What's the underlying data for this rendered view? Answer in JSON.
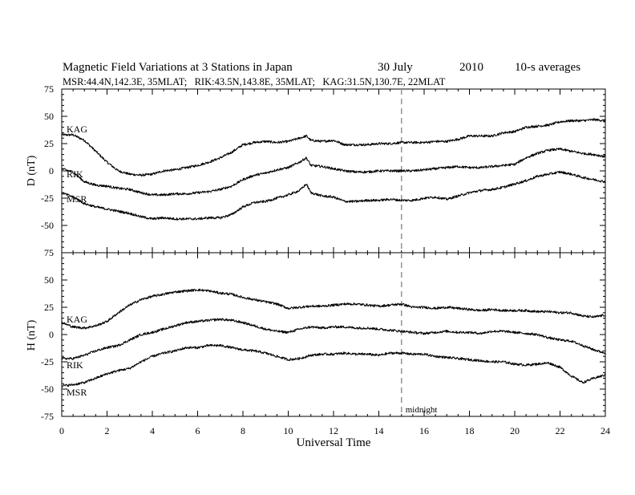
{
  "chart_data": {
    "type": "line",
    "title": {
      "main": "Magnetic Field Variations at 3 Stations in Japan",
      "date": "30 July",
      "year": "2010",
      "averaging": "10-s averages"
    },
    "subtitle": "MSR:44.4N,142.3E, 35MLAT;   RIK:43.5N,143.8E, 35MLAT;   KAG:31.5N,130.7E, 22MLAT",
    "xlabel": "Universal Time",
    "xlim": [
      0,
      24
    ],
    "xticks": [
      0,
      2,
      4,
      6,
      8,
      10,
      12,
      14,
      16,
      18,
      20,
      22,
      24
    ],
    "grid": false,
    "legend": "none",
    "line_color": "#000000",
    "marker": {
      "x": 15,
      "label": "midnight",
      "color": "#999999",
      "style": "dashed"
    },
    "panels": [
      {
        "ylabel": "D (nT)",
        "ylim": [
          -75,
          75
        ],
        "yticks": [
          -75,
          -50,
          -25,
          0,
          25,
          50,
          75
        ],
        "series": [
          {
            "name": "KAG",
            "x": [
              0,
              0.5,
              1,
              1.5,
              2,
              2.5,
              3,
              3.5,
              4,
              4.5,
              5,
              5.5,
              6,
              6.5,
              7,
              7.5,
              8,
              8.5,
              9,
              9.5,
              10,
              10.5,
              10.8,
              11,
              11.5,
              12,
              12.5,
              13,
              13.5,
              14,
              14.5,
              15,
              15.5,
              16,
              16.5,
              17,
              17.5,
              18,
              18.5,
              19,
              19.5,
              20,
              20.5,
              21,
              21.5,
              22,
              22.5,
              23,
              23.5,
              24
            ],
            "y": [
              33,
              33,
              28,
              18,
              8,
              0,
              -3,
              -4,
              -3,
              0,
              1,
              3,
              5,
              8,
              12,
              17,
              24,
              26,
              27,
              26,
              27,
              30,
              32,
              28,
              27,
              28,
              24,
              24,
              24,
              25,
              25,
              26,
              26,
              26,
              27,
              27,
              29,
              32,
              32,
              32,
              35,
              36,
              40,
              41,
              42,
              45,
              46,
              46,
              47,
              46
            ]
          },
          {
            "name": "RIK",
            "x": [
              0,
              0.5,
              1,
              1.5,
              2,
              2.5,
              3,
              3.5,
              4,
              4.5,
              5,
              5.5,
              6,
              6.5,
              7,
              7.5,
              8,
              8.5,
              9,
              9.5,
              10,
              10.5,
              10.8,
              11,
              11.5,
              12,
              12.5,
              13,
              13.5,
              14,
              14.5,
              15,
              15.5,
              16,
              16.5,
              17,
              17.5,
              18,
              18.5,
              19,
              19.5,
              20,
              20.5,
              21,
              21.5,
              22,
              22.5,
              23,
              23.5,
              24
            ],
            "y": [
              2,
              -1,
              -10,
              -13,
              -14,
              -16,
              -17,
              -20,
              -22,
              -22,
              -21,
              -21,
              -20,
              -19,
              -17,
              -14,
              -8,
              -4,
              -2,
              1,
              3,
              8,
              12,
              5,
              4,
              2,
              0,
              -1,
              -1,
              0,
              0,
              0,
              0,
              1,
              2,
              3,
              4,
              3,
              3,
              4,
              5,
              6,
              12,
              16,
              19,
              20,
              18,
              16,
              15,
              13
            ]
          },
          {
            "name": "MSR",
            "x": [
              0,
              0.5,
              1,
              1.5,
              2,
              2.5,
              3,
              3.5,
              4,
              4.5,
              5,
              5.5,
              6,
              6.5,
              7,
              7.5,
              8,
              8.5,
              9,
              9.5,
              10,
              10.5,
              10.8,
              11,
              11.5,
              12,
              12.5,
              13,
              13.5,
              14,
              14.5,
              15,
              15.5,
              16,
              16.5,
              17,
              17.5,
              18,
              18.5,
              19,
              19.5,
              20,
              20.5,
              21,
              21.5,
              22,
              22.5,
              23,
              23.5,
              24
            ],
            "y": [
              -20,
              -24,
              -30,
              -33,
              -35,
              -37,
              -39,
              -42,
              -44,
              -43,
              -44,
              -44,
              -44,
              -43,
              -43,
              -40,
              -33,
              -29,
              -28,
              -25,
              -22,
              -18,
              -12,
              -20,
              -23,
              -24,
              -28,
              -28,
              -27,
              -27,
              -26,
              -27,
              -27,
              -25,
              -24,
              -26,
              -23,
              -20,
              -18,
              -17,
              -15,
              -12,
              -9,
              -5,
              -3,
              -1,
              -3,
              -6,
              -8,
              -10
            ]
          }
        ]
      },
      {
        "ylabel": "H (nT)",
        "ylim": [
          -75,
          75
        ],
        "yticks": [
          -75,
          -50,
          -25,
          0,
          25,
          50,
          75
        ],
        "series": [
          {
            "name": "KAG",
            "x": [
              0,
              0.5,
              1,
              1.5,
              2,
              2.5,
              3,
              3.5,
              4,
              4.5,
              5,
              5.5,
              6,
              6.5,
              7,
              7.5,
              8,
              8.5,
              9,
              9.5,
              10,
              10.5,
              11,
              11.5,
              12,
              12.5,
              13,
              13.5,
              14,
              14.5,
              15,
              15.5,
              16,
              16.5,
              17,
              17.5,
              18,
              18.5,
              19,
              19.5,
              20,
              20.5,
              21,
              21.5,
              22,
              22.5,
              23,
              23.5,
              24
            ],
            "y": [
              11,
              7,
              6,
              8,
              12,
              20,
              27,
              32,
              35,
              37,
              39,
              40,
              41,
              40,
              38,
              37,
              34,
              32,
              30,
              28,
              24,
              25,
              26,
              26,
              27,
              28,
              28,
              27,
              26,
              27,
              28,
              25,
              25,
              24,
              25,
              24,
              23,
              22,
              23,
              22,
              22,
              22,
              21,
              21,
              20,
              20,
              17,
              16,
              18
            ]
          },
          {
            "name": "RIK",
            "x": [
              0,
              0.5,
              1,
              1.5,
              2,
              2.5,
              3,
              3.5,
              4,
              4.5,
              5,
              5.5,
              6,
              6.5,
              7,
              7.5,
              8,
              8.5,
              9,
              9.5,
              10,
              10.5,
              11,
              11.5,
              12,
              12.5,
              13,
              13.5,
              14,
              14.5,
              15,
              15.5,
              16,
              16.5,
              17,
              17.5,
              18,
              18.5,
              19,
              19.5,
              20,
              20.5,
              21,
              21.5,
              22,
              22.5,
              23,
              23.5,
              24
            ],
            "y": [
              -22,
              -22,
              -19,
              -15,
              -12,
              -10,
              -5,
              0,
              2,
              5,
              8,
              11,
              12,
              13,
              14,
              13,
              11,
              8,
              5,
              3,
              2,
              5,
              7,
              6,
              7,
              7,
              6,
              6,
              5,
              4,
              3,
              2,
              1,
              2,
              3,
              2,
              2,
              1,
              3,
              3,
              2,
              1,
              0,
              -3,
              -5,
              -6,
              -10,
              -14,
              -17
            ]
          },
          {
            "name": "MSR",
            "x": [
              0,
              0.5,
              1,
              1.5,
              2,
              2.5,
              3,
              3.5,
              4,
              4.5,
              5,
              5.5,
              6,
              6.5,
              7,
              7.5,
              8,
              8.5,
              9,
              9.5,
              10,
              10.5,
              11,
              11.5,
              12,
              12.5,
              13,
              13.5,
              14,
              14.5,
              15,
              15.5,
              16,
              16.5,
              17,
              17.5,
              18,
              18.5,
              19,
              19.5,
              20,
              20.5,
              21,
              21.5,
              22,
              22.5,
              23,
              23.5,
              24
            ],
            "y": [
              -47,
              -46,
              -44,
              -40,
              -36,
              -33,
              -31,
              -25,
              -20,
              -17,
              -15,
              -12,
              -12,
              -10,
              -10,
              -12,
              -14,
              -15,
              -17,
              -20,
              -23,
              -22,
              -19,
              -18,
              -18,
              -17,
              -18,
              -18,
              -19,
              -17,
              -17,
              -18,
              -18,
              -20,
              -21,
              -22,
              -23,
              -24,
              -25,
              -25,
              -27,
              -28,
              -27,
              -26,
              -30,
              -38,
              -44,
              -40,
              -37
            ]
          }
        ]
      }
    ]
  }
}
